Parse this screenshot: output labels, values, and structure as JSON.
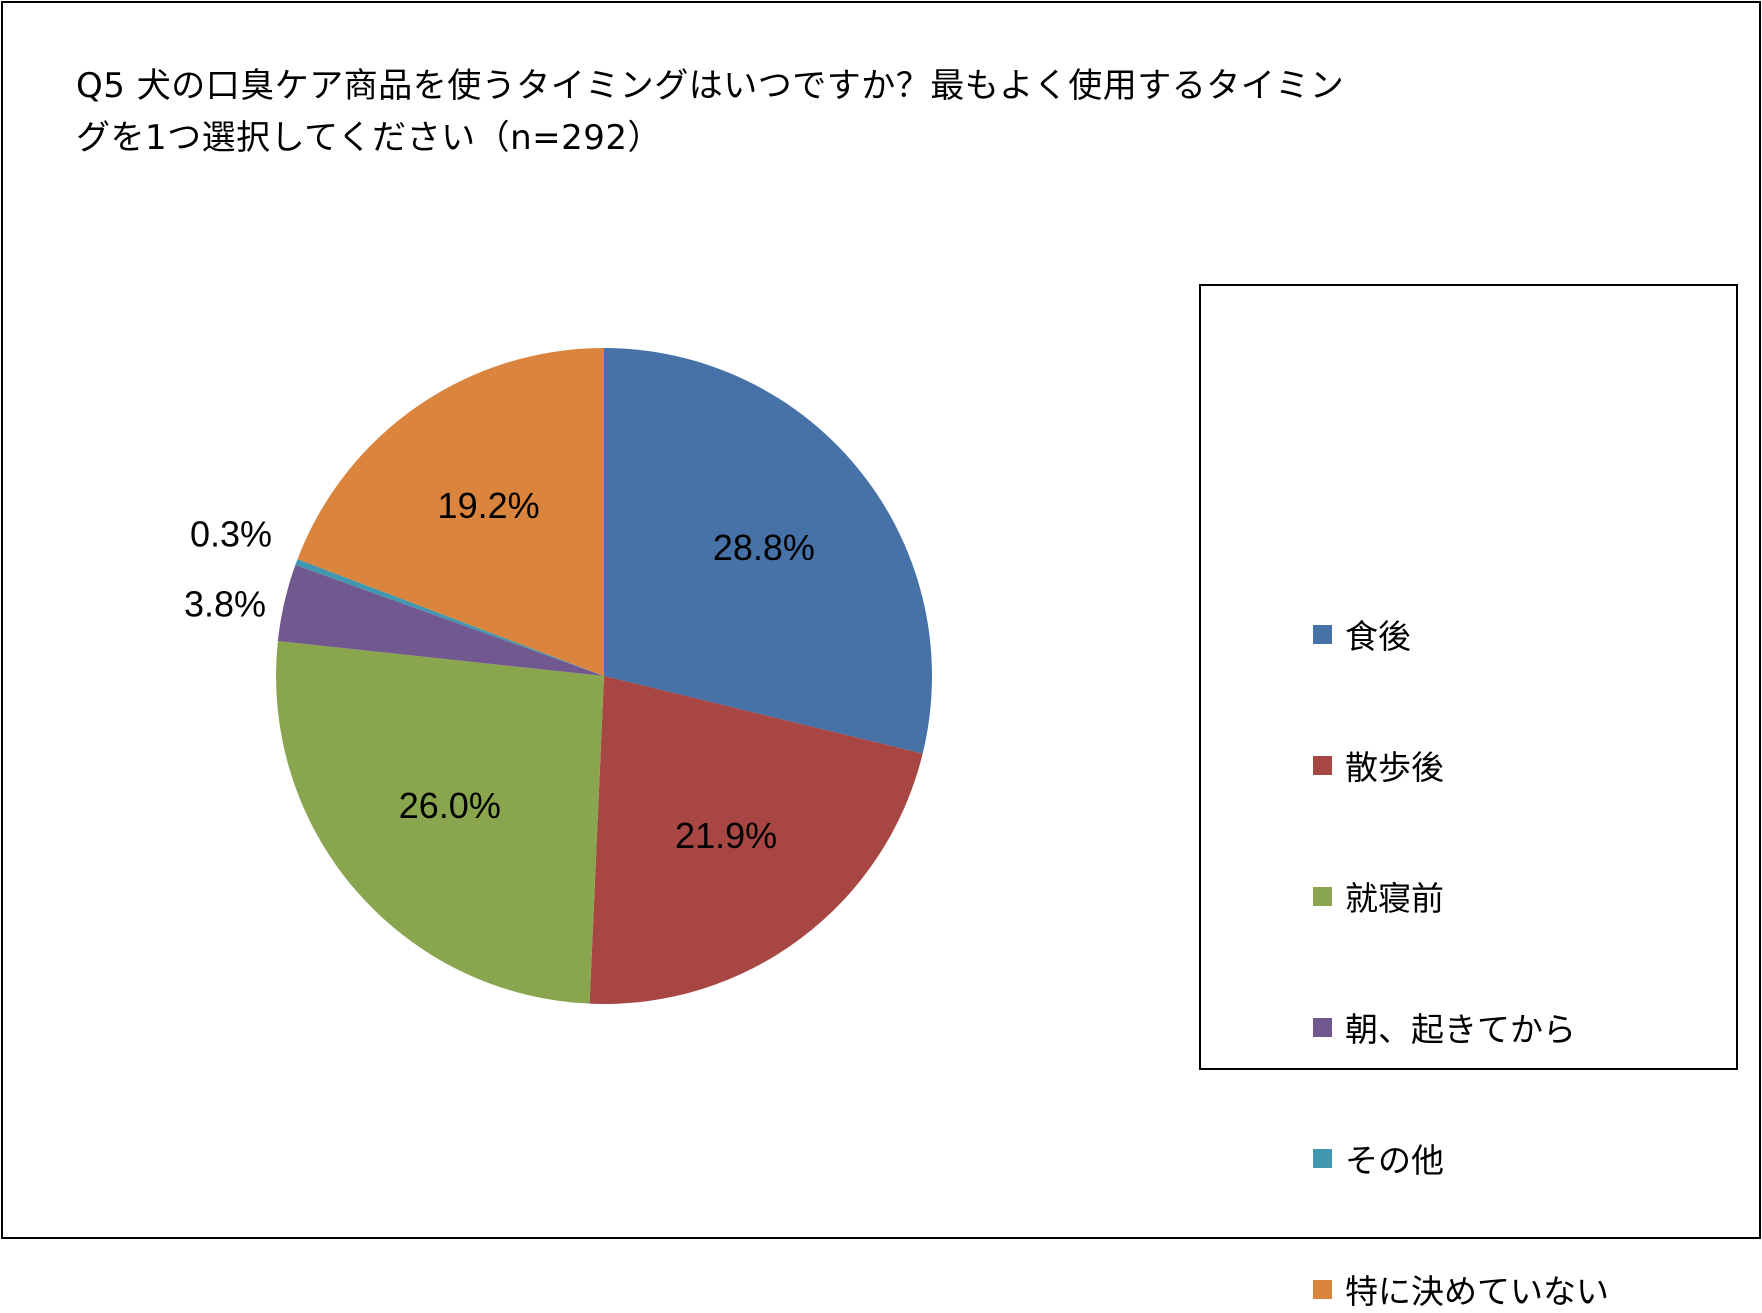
{
  "chart_data": {
    "type": "pie",
    "title_lines": [
      "Q5 犬の口臭ケア商品を使うタイミングはいつですか？最もよく使用するタイミン",
      "グを1つ選択してください（n=292）"
    ],
    "categories": [
      "食後",
      "散歩後",
      "就寝前",
      "朝、起きてから",
      "その他",
      "特に決めていない"
    ],
    "values": [
      28.8,
      21.9,
      26.0,
      3.8,
      0.3,
      19.2
    ],
    "data_labels": [
      "28.8%",
      "21.9%",
      "26.0%",
      "3.8%",
      "0.3%",
      "19.2%"
    ],
    "colors": [
      "#4672A8",
      "#A84644",
      "#89A54E",
      "#71588F",
      "#4197AF",
      "#DB843D"
    ],
    "start_angle": "12 o'clock",
    "direction": "clockwise",
    "legend_position": "right"
  }
}
